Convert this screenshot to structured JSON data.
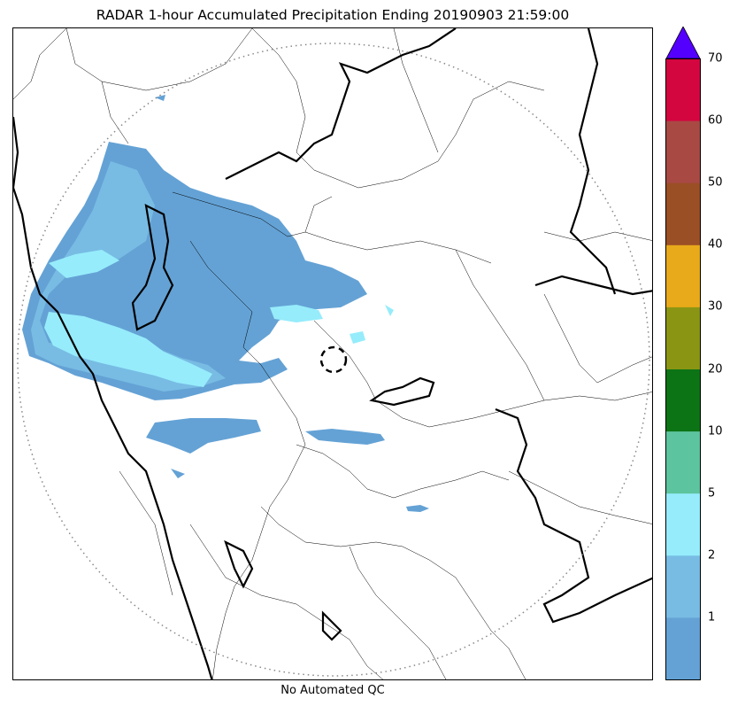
{
  "title": "RADAR 1-hour Accumulated Precipitation Ending 20190903 21:59:00",
  "footer": "No Automated QC",
  "colorbar": {
    "labels": [
      "1",
      "2",
      "5",
      "10",
      "20",
      "30",
      "40",
      "50",
      "60",
      "70"
    ],
    "bins": [
      {
        "color": "#64a2d5"
      },
      {
        "color": "#78bce4"
      },
      {
        "color": "#96ecfb"
      },
      {
        "color": "#5cc49e"
      },
      {
        "color": "#0d7415"
      },
      {
        "color": "#8a9613"
      },
      {
        "color": "#e8aa1a"
      },
      {
        "color": "#9b4f25"
      },
      {
        "color": "#a84944"
      },
      {
        "color": "#d30640"
      }
    ],
    "extend_color": "#5400ff"
  },
  "radar": {
    "range_ring": "dotted gray",
    "site_marker": "dashed circle"
  }
}
